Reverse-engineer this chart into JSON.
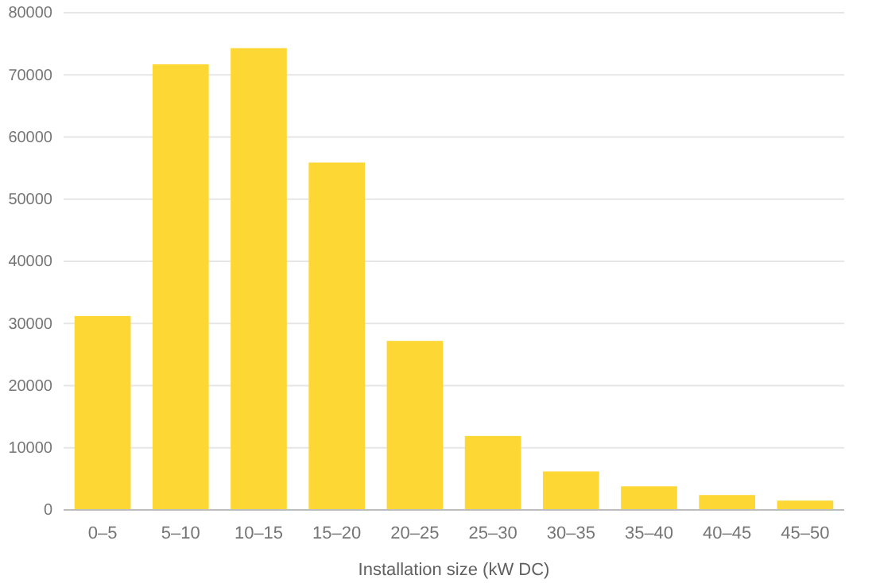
{
  "chart_data": {
    "type": "bar",
    "xlabel": "Installation size (kW DC)",
    "categories": [
      "0–5",
      "5–10",
      "10–15",
      "15–20",
      "20–25",
      "25–30",
      "30–35",
      "35–40",
      "40–45",
      "45–50"
    ],
    "values": [
      31200,
      71700,
      74300,
      55900,
      27200,
      11900,
      6200,
      3800,
      2400,
      1500
    ],
    "color": "#fdd835",
    "ylim": [
      0,
      80000
    ],
    "yticks": [
      0,
      10000,
      20000,
      30000,
      40000,
      50000,
      60000,
      70000,
      80000
    ],
    "grid": "y"
  }
}
